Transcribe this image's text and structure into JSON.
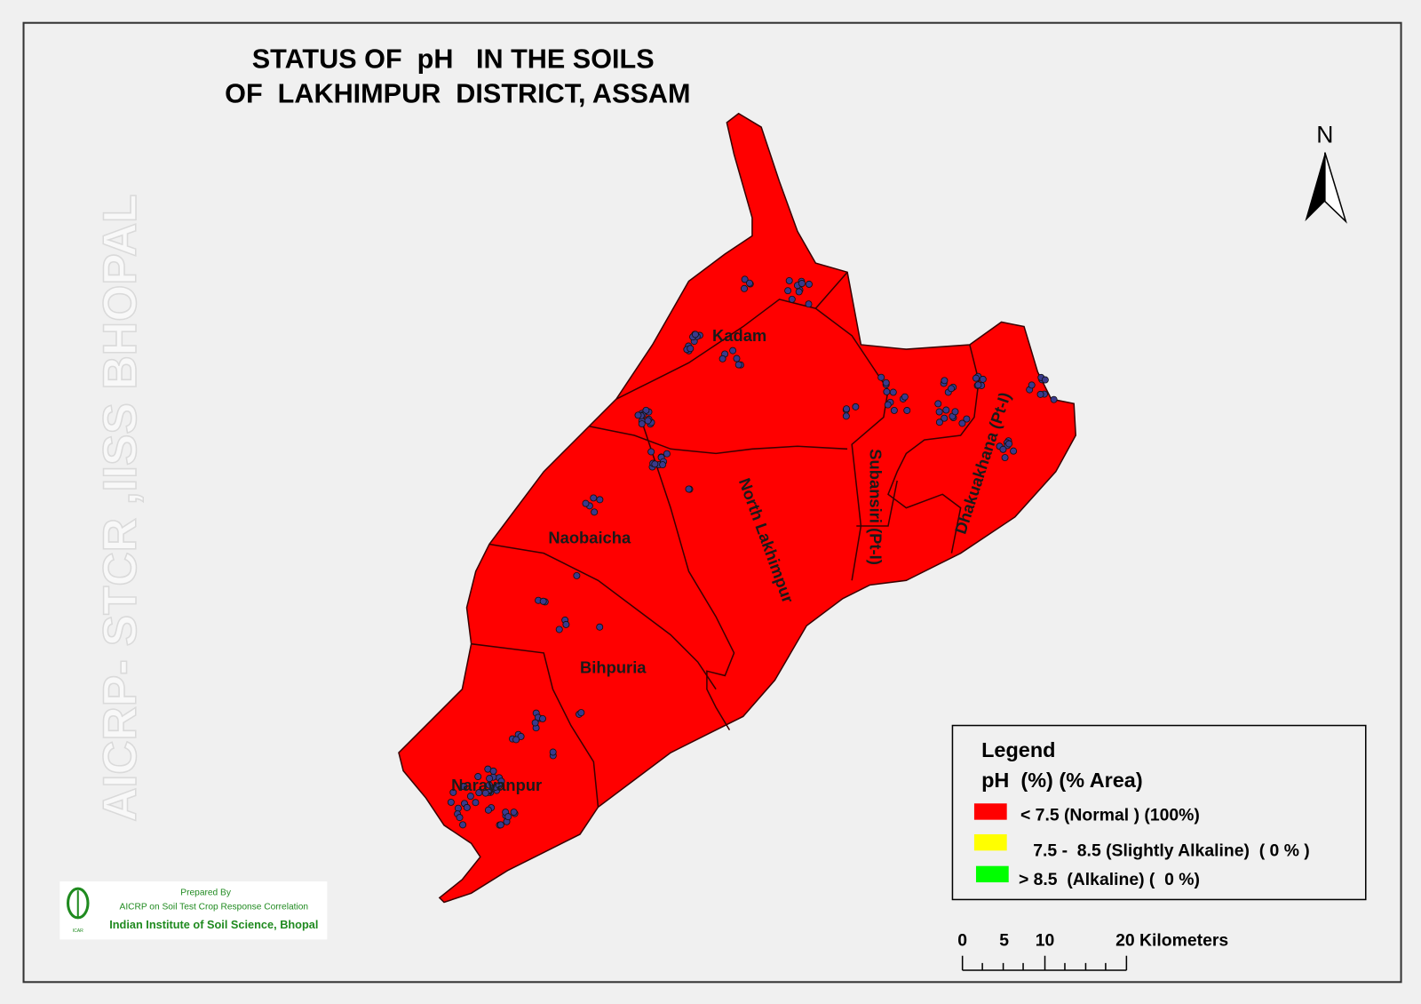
{
  "title": {
    "line1": "STATUS OF  pH   IN THE SOILS",
    "line2": "OF  LAKHIMPUR  DISTRICT, ASSAM"
  },
  "map": {
    "fill_color": "#ff0000",
    "sample_point_color": "#3a3a8c",
    "blocks": [
      "Kadam",
      "Naobaicha",
      "Bihpuria",
      "Narayanpur",
      "North Lakhimpur",
      "Subansiri (Pt-I)",
      "Dhakuakhana (Pt-I)"
    ]
  },
  "watermark": "AICRP- STCR ,IISS BHOPAL",
  "north_arrow": {
    "label": "N",
    "icon": "north-arrow-icon"
  },
  "legend": {
    "title": "Legend",
    "subtitle": "pH  (%) (% Area)",
    "items": [
      {
        "label": "< 7.5 (Normal ) (100%)",
        "color": "#ff0000",
        "percent": 100
      },
      {
        "label": "7.5 -  8.5 (Slightly Alkaline)  ( 0 % )",
        "color": "#ffff00",
        "percent": 0
      },
      {
        "label": "> 8.5  (Alkaline) (  0 %)",
        "color": "#00ff00",
        "percent": 0
      }
    ]
  },
  "scale_bar": {
    "ticks": [
      "0",
      "5",
      "10",
      "20 Kilometers"
    ]
  },
  "credit": {
    "line1": "Prepared By",
    "line2": "AICRP on Soil Test Crop Response Correlation",
    "line3": "Indian Institute of Soil Science, Bhopal",
    "logo_text": "ICAR"
  }
}
